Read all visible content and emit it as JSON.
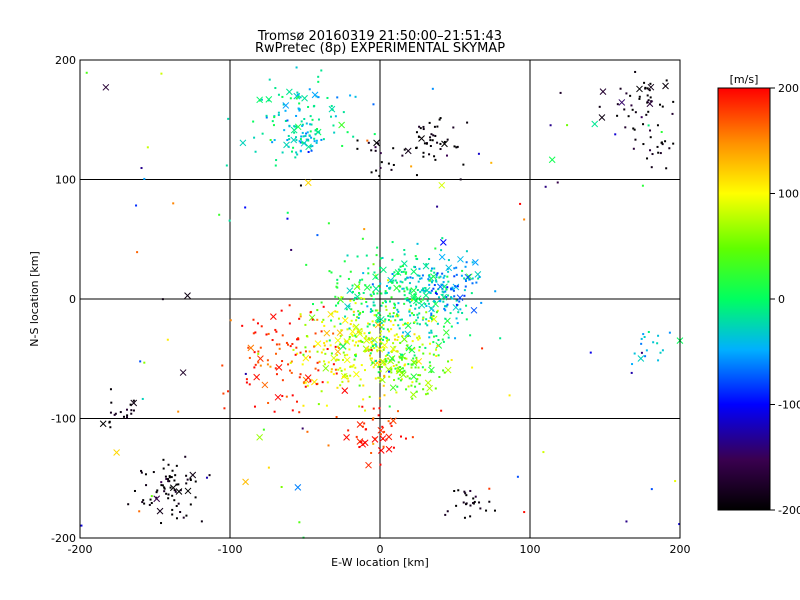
{
  "chart_data": {
    "type": "scatter",
    "title": "Tromsø 20160319 21:50:00–21:51:43",
    "subtitle": "RwPretec (8p) EXPERIMENTAL SKYMAP",
    "xlabel": "E-W location [km]",
    "ylabel": "N-S location [km]",
    "xlim": [
      -200,
      200
    ],
    "ylim": [
      -200,
      200
    ],
    "xticks": [
      -200,
      -100,
      0,
      100,
      200
    ],
    "yticks": [
      -200,
      -100,
      0,
      100,
      200
    ],
    "grid": true,
    "colorbar": {
      "label": "[m/s]",
      "range": [
        -200,
        200
      ],
      "ticks": [
        200,
        100,
        0,
        -100,
        -200
      ],
      "colormap": "rainbow"
    },
    "point_markers": [
      "dot",
      "cross"
    ],
    "clusters": [
      {
        "x": -50,
        "y": 150,
        "vel": -20,
        "count": 110
      },
      {
        "x": -50,
        "y": 135,
        "vel": -40,
        "count": 40
      },
      {
        "x": 35,
        "y": 127,
        "vel": -200,
        "count": 45
      },
      {
        "x": 170,
        "y": 165,
        "vel": -200,
        "count": 45
      },
      {
        "x": 185,
        "y": 125,
        "vel": -200,
        "count": 20
      },
      {
        "x": 20,
        "y": 0,
        "vel": -20,
        "count": 240
      },
      {
        "x": 45,
        "y": 15,
        "vel": -60,
        "count": 70
      },
      {
        "x": -10,
        "y": -40,
        "vel": 90,
        "count": 280
      },
      {
        "x": -60,
        "y": -50,
        "vel": 180,
        "count": 110
      },
      {
        "x": 20,
        "y": -60,
        "vel": 40,
        "count": 90
      },
      {
        "x": -3,
        "y": -115,
        "vel": 190,
        "count": 45
      },
      {
        "x": -140,
        "y": -160,
        "vel": -200,
        "count": 75
      },
      {
        "x": -170,
        "y": -95,
        "vel": -200,
        "count": 20
      },
      {
        "x": 180,
        "y": -40,
        "vel": -40,
        "count": 18
      },
      {
        "x": 0,
        "y": 120,
        "vel": -200,
        "count": 20
      },
      {
        "x": 60,
        "y": -170,
        "vel": -200,
        "count": 25
      },
      {
        "x": 0,
        "y": 0,
        "vel": 0,
        "count": 120
      }
    ]
  }
}
